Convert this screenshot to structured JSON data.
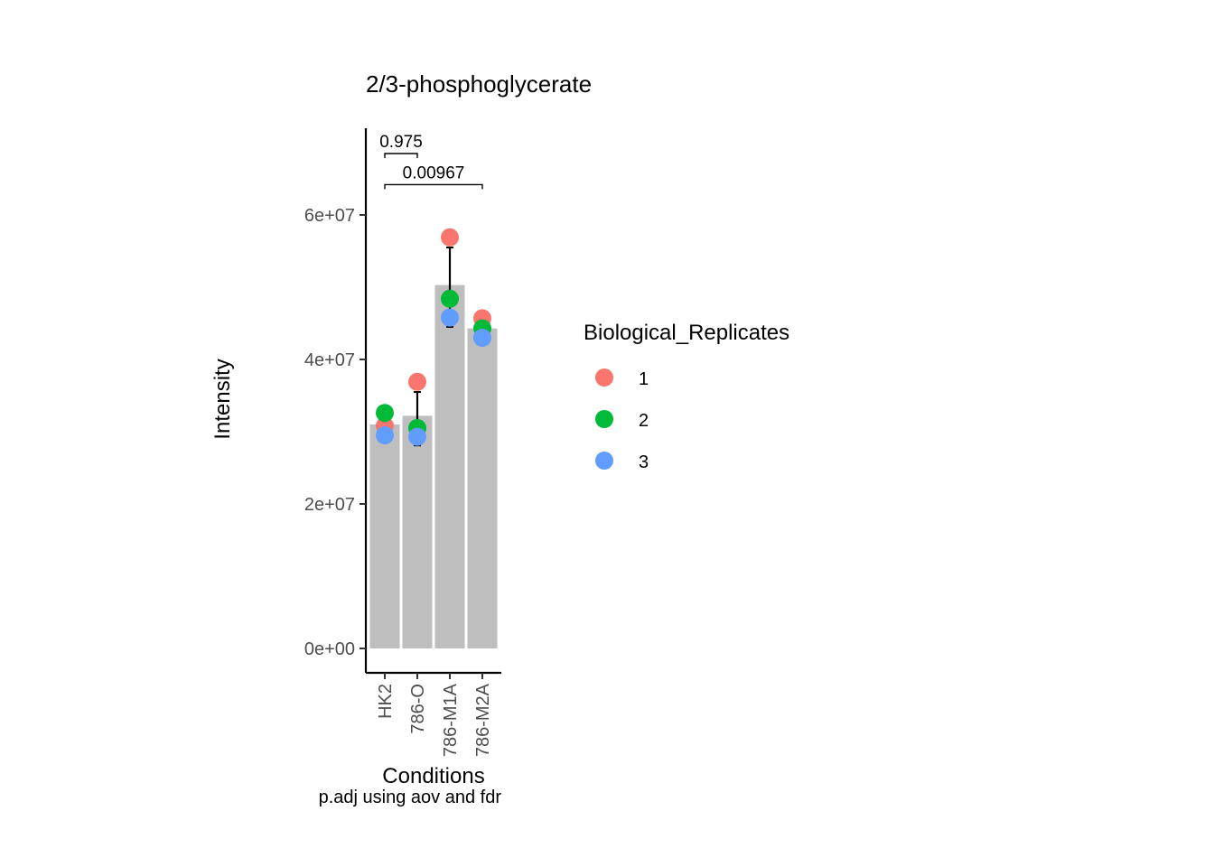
{
  "chart_data": {
    "type": "bar",
    "title": "2/3-phosphoglycerate",
    "xlabel": "Conditions",
    "ylabel": "Intensity",
    "caption": "p.adj using  aov and fdr",
    "categories": [
      "HK2",
      "786-O",
      "786-M1A",
      "786-M2A"
    ],
    "bar_means": [
      31000000,
      32200000,
      50300000,
      44300000
    ],
    "error_bars": [
      {
        "low": 29500000,
        "high": 31000000
      },
      {
        "low": 28100000,
        "high": 35500000
      },
      {
        "low": 44500000,
        "high": 55500000
      },
      {
        "low": 43000000,
        "high": 44300000
      }
    ],
    "points": [
      {
        "category": "HK2",
        "replicate": "1",
        "value": 30800000
      },
      {
        "category": "HK2",
        "replicate": "2",
        "value": 32600000
      },
      {
        "category": "HK2",
        "replicate": "3",
        "value": 29500000
      },
      {
        "category": "786-O",
        "replicate": "1",
        "value": 36900000
      },
      {
        "category": "786-O",
        "replicate": "2",
        "value": 30500000
      },
      {
        "category": "786-O",
        "replicate": "3",
        "value": 29300000
      },
      {
        "category": "786-M1A",
        "replicate": "1",
        "value": 56900000
      },
      {
        "category": "786-M1A",
        "replicate": "2",
        "value": 48400000
      },
      {
        "category": "786-M1A",
        "replicate": "3",
        "value": 45800000
      },
      {
        "category": "786-M2A",
        "replicate": "1",
        "value": 45700000
      },
      {
        "category": "786-M2A",
        "replicate": "2",
        "value": 44300000
      },
      {
        "category": "786-M2A",
        "replicate": "3",
        "value": 43000000
      }
    ],
    "ylim": [
      0,
      72000000
    ],
    "y_ticks": [
      {
        "value": 0,
        "label": "0e+00"
      },
      {
        "value": 20000000,
        "label": "2e+07"
      },
      {
        "value": 40000000,
        "label": "4e+07"
      },
      {
        "value": 60000000,
        "label": "6e+07"
      }
    ],
    "significance": [
      {
        "from": "HK2",
        "to": "786-O",
        "label": "0.975",
        "y": 68500000
      },
      {
        "from": "HK2",
        "to": "786-M2A",
        "label": "0.00967",
        "y": 64200000
      }
    ],
    "legend": {
      "title": "Biological_Replicates",
      "placement": "right",
      "items": [
        {
          "label": "1",
          "color": "#F8766D"
        },
        {
          "label": "2",
          "color": "#00BA38"
        },
        {
          "label": "3",
          "color": "#619CFF"
        }
      ]
    },
    "bar_color": "#BEBEBE",
    "grid": false
  }
}
